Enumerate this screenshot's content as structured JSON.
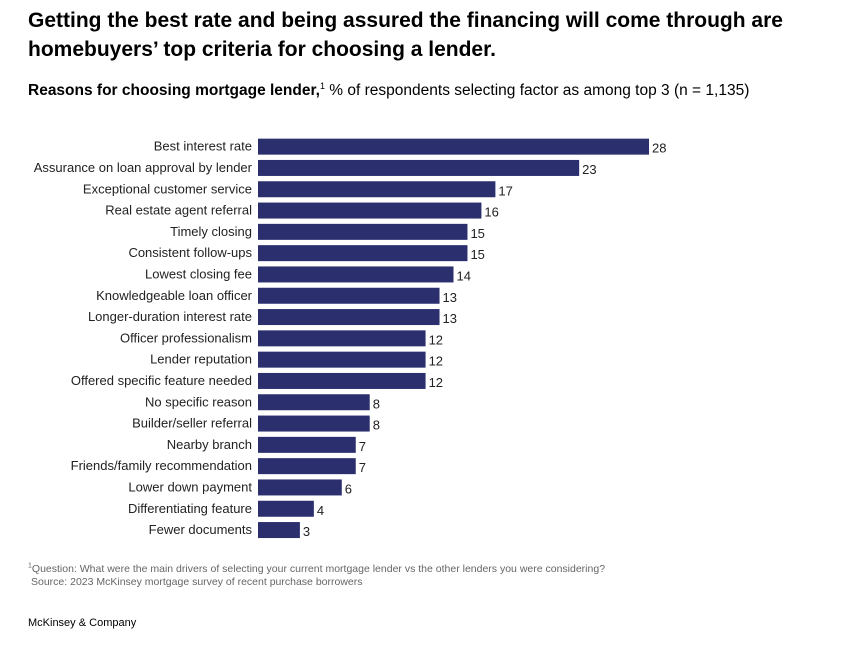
{
  "headline": "Getting the best rate and being assured the financing will come through are homebuyers’ top criteria for choosing a lender.",
  "subtitle": {
    "bold": "Reasons for choosing mortgage lender,",
    "sup": "1",
    "rest": " % of respondents selecting factor as among top 3 (n = 1,135)"
  },
  "colors": {
    "bar": "#2b2f6e"
  },
  "chart_data": {
    "type": "bar",
    "orientation": "horizontal",
    "title": "Reasons for choosing mortgage lender",
    "xlabel": "% of respondents selecting factor as among top 3",
    "ylabel": "",
    "xlim": [
      0,
      28
    ],
    "categories": [
      "Best interest rate",
      "Assurance on loan approval by lender",
      "Exceptional customer service",
      "Real estate agent referral",
      "Timely closing",
      "Consistent follow-ups",
      "Lowest closing fee",
      "Knowledgeable loan officer",
      "Longer-duration interest rate",
      "Officer professionalism",
      "Lender reputation",
      "Offered specific feature needed",
      "No specific reason",
      "Builder/seller referral",
      "Nearby branch",
      "Friends/family recommendation",
      "Lower down payment",
      "Differentiating feature",
      "Fewer documents"
    ],
    "values": [
      28,
      23,
      17,
      16,
      15,
      15,
      14,
      13,
      13,
      12,
      12,
      12,
      8,
      8,
      7,
      7,
      6,
      4,
      3
    ]
  },
  "footnote": {
    "sup": "1",
    "question": "Question: What were the main drivers of selecting your current mortgage lender vs the other lenders you were considering?",
    "source": "Source: 2023 McKinsey mortgage survey of recent purchase borrowers"
  },
  "brand": "McKinsey & Company"
}
